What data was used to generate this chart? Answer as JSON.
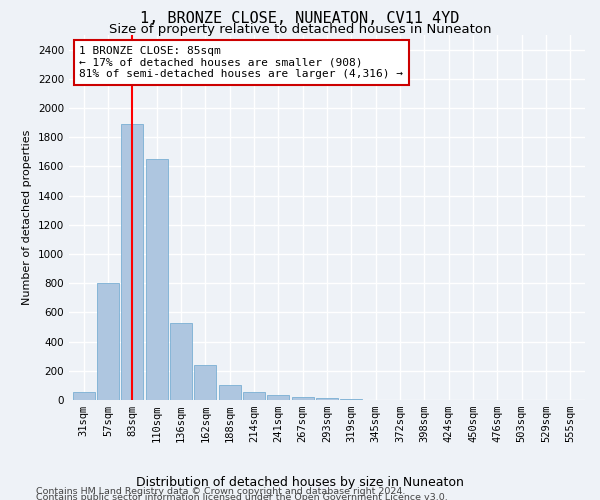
{
  "title": "1, BRONZE CLOSE, NUNEATON, CV11 4YD",
  "subtitle": "Size of property relative to detached houses in Nuneaton",
  "xlabel": "Distribution of detached houses by size in Nuneaton",
  "ylabel": "Number of detached properties",
  "categories": [
    "31sqm",
    "57sqm",
    "83sqm",
    "110sqm",
    "136sqm",
    "162sqm",
    "188sqm",
    "214sqm",
    "241sqm",
    "267sqm",
    "293sqm",
    "319sqm",
    "345sqm",
    "372sqm",
    "398sqm",
    "424sqm",
    "450sqm",
    "476sqm",
    "503sqm",
    "529sqm",
    "555sqm"
  ],
  "values": [
    55,
    800,
    1890,
    1650,
    530,
    238,
    105,
    55,
    35,
    20,
    15,
    5,
    2,
    1,
    0,
    0,
    0,
    0,
    0,
    0,
    0
  ],
  "bar_color": "#aec6e0",
  "bar_edge_color": "#7aafd4",
  "red_line_x": 2,
  "annotation_text": "1 BRONZE CLOSE: 85sqm\n← 17% of detached houses are smaller (908)\n81% of semi-detached houses are larger (4,316) →",
  "annotation_box_color": "#ffffff",
  "annotation_box_edge_color": "#cc0000",
  "ylim": [
    0,
    2500
  ],
  "yticks": [
    0,
    200,
    400,
    600,
    800,
    1000,
    1200,
    1400,
    1600,
    1800,
    2000,
    2200,
    2400
  ],
  "footer_line1": "Contains HM Land Registry data © Crown copyright and database right 2024.",
  "footer_line2": "Contains public sector information licensed under the Open Government Licence v3.0.",
  "background_color": "#eef2f7",
  "grid_color": "#ffffff",
  "title_fontsize": 11,
  "subtitle_fontsize": 9.5,
  "ylabel_fontsize": 8,
  "xlabel_fontsize": 9,
  "tick_fontsize": 7.5,
  "annotation_fontsize": 8,
  "footer_fontsize": 6.8
}
